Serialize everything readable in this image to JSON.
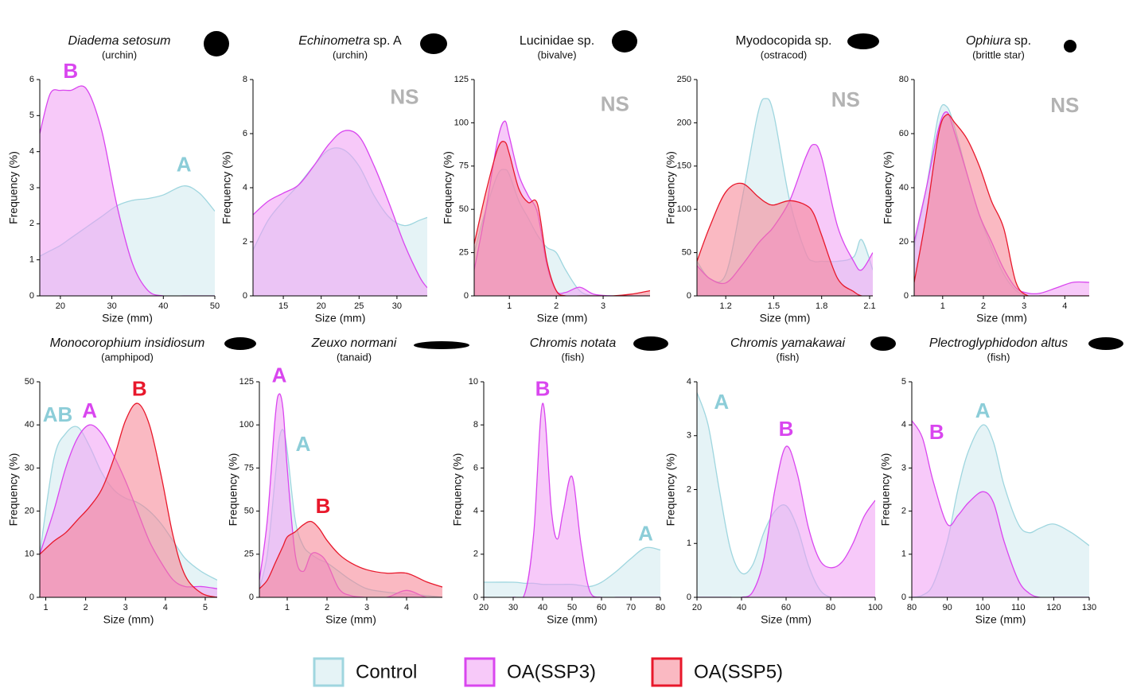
{
  "legend": [
    {
      "name": "Control",
      "color": "#9fd6df",
      "fill": "#cfe9ef"
    },
    {
      "name": "OA(SSP3)",
      "color": "#d946ef",
      "fill": "#f09cf4"
    },
    {
      "name": "OA(SSP5)",
      "color": "#e8182b",
      "fill": "#f57f8f"
    }
  ],
  "chart_data": [
    {
      "type": "area",
      "title": [
        {
          "text": "Diadema setosum",
          "italic": true
        }
      ],
      "subtitle": "(urchin)",
      "xlabel": "Size (mm)",
      "ylabel": "Frequency (%)",
      "x": [
        16,
        18,
        20,
        22,
        25,
        28,
        31,
        34,
        37,
        40,
        44,
        47,
        50
      ],
      "series": [
        {
          "name": "Control",
          "values": [
            1.1,
            1.25,
            1.4,
            1.6,
            1.9,
            2.2,
            2.5,
            2.65,
            2.7,
            2.8,
            3.05,
            2.85,
            2.35
          ]
        },
        {
          "name": "OA(SSP3)",
          "values": [
            4.5,
            5.6,
            5.7,
            5.7,
            5.75,
            4.6,
            2.5,
            0.9,
            0.15,
            0,
            0,
            0,
            0
          ]
        }
      ],
      "xlim": [
        16,
        50
      ],
      "xticks": [
        20,
        30,
        40,
        50
      ],
      "ylim": [
        0,
        6
      ],
      "yticks": [
        0,
        1,
        2,
        3,
        4,
        5,
        6
      ],
      "annotations": [
        {
          "text": "B",
          "x": 22,
          "y": 6.2,
          "color": "#d946ef"
        },
        {
          "text": "A",
          "x": 44,
          "y": 3.6,
          "color": "#8ccdd8"
        }
      ]
    },
    {
      "type": "area",
      "title": [
        {
          "text": "Echinometra",
          "italic": true
        },
        {
          "text": "sp. A",
          "italic": false
        }
      ],
      "subtitle": "(urchin)",
      "xlabel": "Size (mm)",
      "ylabel": "Frequency (%)",
      "x": [
        11,
        13,
        15,
        17,
        19,
        21,
        23,
        25,
        27,
        29,
        31,
        33,
        34
      ],
      "series": [
        {
          "name": "Control",
          "values": [
            1.7,
            2.8,
            3.5,
            4.1,
            4.8,
            5.4,
            5.4,
            4.8,
            3.7,
            2.9,
            2.6,
            2.8,
            2.9
          ]
        },
        {
          "name": "OA(SSP3)",
          "values": [
            3.0,
            3.5,
            3.8,
            4.1,
            4.8,
            5.6,
            6.1,
            5.9,
            4.8,
            3.4,
            1.9,
            0.7,
            0.3
          ]
        }
      ],
      "xlim": [
        11,
        34
      ],
      "xticks": [
        15,
        20,
        25,
        30
      ],
      "ylim": [
        0,
        8
      ],
      "yticks": [
        0,
        2,
        4,
        6,
        8
      ],
      "annotations": [
        {
          "text": "NS",
          "x": 31,
          "y": 7.3,
          "color": "#b3b3b3"
        }
      ]
    },
    {
      "type": "area",
      "title": [
        {
          "text": "Lucinidae sp.",
          "italic": false
        }
      ],
      "subtitle": "(bivalve)",
      "xlabel": "Size (mm)",
      "ylabel": "Frequency (%)",
      "x": [
        0.25,
        0.5,
        0.75,
        0.9,
        1.0,
        1.2,
        1.4,
        1.6,
        1.8,
        2.0,
        2.2,
        2.5,
        2.8,
        3.2,
        3.6,
        4.0
      ],
      "series": [
        {
          "name": "Control",
          "values": [
            25,
            50,
            70,
            73,
            70,
            55,
            45,
            35,
            28,
            25,
            15,
            3,
            0,
            0,
            0,
            0
          ]
        },
        {
          "name": "OA(SSP3)",
          "values": [
            15,
            50,
            90,
            101,
            92,
            70,
            58,
            48,
            18,
            3,
            2,
            5,
            1,
            0,
            0,
            0
          ]
        },
        {
          "name": "OA(SSP5)",
          "values": [
            30,
            60,
            85,
            89,
            82,
            62,
            54,
            53,
            20,
            3,
            0,
            0,
            0,
            0,
            1,
            3
          ]
        }
      ],
      "xlim": [
        0.25,
        4
      ],
      "xticks": [
        1,
        2,
        3
      ],
      "ylim": [
        0,
        125
      ],
      "yticks": [
        0,
        25,
        50,
        75,
        100,
        125
      ],
      "annotations": [
        {
          "text": "NS",
          "x": 3.25,
          "y": 110,
          "color": "#b3b3b3"
        }
      ]
    },
    {
      "type": "area",
      "title": [
        {
          "text": "Myodocopida sp.",
          "italic": false
        }
      ],
      "subtitle": "(ostracod)",
      "xlabel": "Size (mm)",
      "ylabel": "Frequency (%)",
      "x": [
        1.02,
        1.1,
        1.2,
        1.3,
        1.4,
        1.45,
        1.5,
        1.6,
        1.7,
        1.75,
        1.8,
        1.9,
        2.0,
        2.05,
        2.12
      ],
      "series": [
        {
          "name": "Control",
          "values": [
            40,
            20,
            25,
            110,
            210,
            228,
            210,
            110,
            50,
            40,
            40,
            40,
            45,
            65,
            30
          ]
        },
        {
          "name": "OA(SSP3)",
          "values": [
            35,
            20,
            15,
            35,
            60,
            70,
            80,
            110,
            160,
            175,
            160,
            80,
            40,
            30,
            50
          ]
        },
        {
          "name": "OA(SSP5)",
          "values": [
            40,
            80,
            120,
            130,
            115,
            108,
            105,
            110,
            105,
            95,
            70,
            20,
            5,
            0,
            0
          ]
        }
      ],
      "xlim": [
        1.02,
        2.12
      ],
      "xticks": [
        1.2,
        1.5,
        1.8,
        2.1
      ],
      "ylim": [
        0,
        250
      ],
      "yticks": [
        0,
        50,
        100,
        150,
        200,
        250
      ],
      "annotations": [
        {
          "text": "NS",
          "x": 1.95,
          "y": 225,
          "color": "#b3b3b3"
        }
      ]
    },
    {
      "type": "area",
      "title": [
        {
          "text": "Ophiura",
          "italic": true
        },
        {
          "text": "sp.",
          "italic": false
        }
      ],
      "subtitle": "(brittle star)",
      "xlabel": "Size (mm)",
      "ylabel": "Frequency (%)",
      "x": [
        0.3,
        0.6,
        0.9,
        1.1,
        1.3,
        1.6,
        1.9,
        2.2,
        2.5,
        2.8,
        3.1,
        3.4,
        3.8,
        4.2,
        4.6
      ],
      "series": [
        {
          "name": "Control",
          "values": [
            18,
            40,
            67,
            70,
            62,
            45,
            30,
            18,
            8,
            2,
            0,
            0,
            0,
            0,
            0
          ]
        },
        {
          "name": "OA(SSP3)",
          "values": [
            20,
            40,
            62,
            68,
            60,
            45,
            30,
            20,
            10,
            3,
            1,
            1,
            3,
            5,
            5
          ]
        },
        {
          "name": "OA(SSP5)",
          "values": [
            5,
            30,
            60,
            67,
            64,
            58,
            48,
            35,
            25,
            5,
            0,
            0,
            0,
            0,
            0
          ]
        }
      ],
      "xlim": [
        0.3,
        4.6
      ],
      "xticks": [
        1,
        2,
        3,
        4
      ],
      "ylim": [
        0,
        80
      ],
      "yticks": [
        0,
        20,
        40,
        60,
        80
      ],
      "annotations": [
        {
          "text": "NS",
          "x": 4,
          "y": 70,
          "color": "#b3b3b3"
        }
      ]
    },
    {
      "type": "area",
      "title": [
        {
          "text": "Monocorophium insidiosum",
          "italic": true
        }
      ],
      "subtitle": "(amphipod)",
      "xlabel": "Size (mm)",
      "ylabel": "Frequency (%)",
      "x": [
        0.85,
        1.2,
        1.5,
        1.8,
        2.1,
        2.4,
        2.7,
        3.0,
        3.3,
        3.6,
        3.9,
        4.2,
        4.5,
        4.9,
        5.3
      ],
      "series": [
        {
          "name": "Control",
          "values": [
            10,
            32,
            38,
            39.5,
            35,
            29,
            25,
            23,
            22,
            20,
            17,
            13,
            9,
            6,
            4
          ]
        },
        {
          "name": "OA(SSP3)",
          "values": [
            10,
            20,
            30,
            37,
            40,
            38,
            33,
            27,
            20,
            13,
            8,
            4,
            2.5,
            2.5,
            2
          ]
        },
        {
          "name": "OA(SSP5)",
          "values": [
            10,
            13,
            15,
            18,
            21,
            25,
            32,
            41,
            45,
            40,
            28,
            14,
            5,
            1,
            0
          ]
        }
      ],
      "xlim": [
        0.85,
        5.3
      ],
      "xticks": [
        1,
        2,
        3,
        4,
        5
      ],
      "ylim": [
        0,
        50
      ],
      "yticks": [
        0,
        10,
        20,
        30,
        40,
        50
      ],
      "annotations": [
        {
          "text": "AB",
          "x": 1.3,
          "y": 42,
          "color": "#8ccdd8"
        },
        {
          "text": "A",
          "x": 2.1,
          "y": 43,
          "color": "#d946ef"
        },
        {
          "text": "B",
          "x": 3.35,
          "y": 48,
          "color": "#e8182b"
        }
      ]
    },
    {
      "type": "area",
      "title": [
        {
          "text": "Zeuxo normani",
          "italic": true
        }
      ],
      "subtitle": "(tanaid)",
      "xlabel": "Size (mm)",
      "ylabel": "Frequency (%)",
      "x": [
        0.3,
        0.5,
        0.7,
        0.8,
        0.9,
        1.0,
        1.2,
        1.4,
        1.6,
        1.8,
        2.0,
        2.3,
        2.6,
        3.0,
        3.5,
        4.0,
        4.5,
        4.9
      ],
      "series": [
        {
          "name": "Control",
          "values": [
            5,
            25,
            70,
            92,
            97,
            85,
            45,
            30,
            25,
            22,
            20,
            15,
            10,
            5,
            3,
            2,
            1,
            0
          ]
        },
        {
          "name": "OA(SSP3)",
          "values": [
            10,
            45,
            105,
            118,
            108,
            75,
            25,
            15,
            25,
            25,
            20,
            5,
            1,
            0,
            0,
            4,
            0,
            0
          ]
        },
        {
          "name": "OA(SSP5)",
          "values": [
            5,
            10,
            20,
            25,
            30,
            35,
            38,
            42,
            44,
            40,
            33,
            25,
            20,
            16,
            14,
            14,
            9,
            6
          ]
        }
      ],
      "xlim": [
        0.3,
        4.9
      ],
      "xticks": [
        1,
        2,
        3,
        4
      ],
      "ylim": [
        0,
        125
      ],
      "yticks": [
        0,
        25,
        50,
        75,
        100,
        125
      ],
      "annotations": [
        {
          "text": "A",
          "x": 0.8,
          "y": 128,
          "color": "#d946ef"
        },
        {
          "text": "A",
          "x": 1.4,
          "y": 88,
          "color": "#8ccdd8"
        },
        {
          "text": "B",
          "x": 1.9,
          "y": 52,
          "color": "#e8182b"
        }
      ]
    },
    {
      "type": "area",
      "title": [
        {
          "text": "Chromis notata",
          "italic": true
        }
      ],
      "subtitle": "(fish)",
      "xlabel": "Size (mm)",
      "ylabel": "Frequency (%)",
      "x": [
        20,
        30,
        34,
        37,
        40,
        43,
        45,
        47,
        50,
        53,
        56,
        60,
        65,
        70,
        75,
        80
      ],
      "series": [
        {
          "name": "Control",
          "values": [
            0.7,
            0.7,
            0.65,
            0.65,
            0.6,
            0.6,
            0.6,
            0.6,
            0.6,
            0.55,
            0.5,
            0.7,
            1.2,
            1.8,
            2.3,
            2.2
          ]
        },
        {
          "name": "OA(SSP3)",
          "values": [
            0,
            0,
            0.2,
            3,
            9,
            4,
            2.7,
            4,
            5.6,
            2.5,
            0.3,
            0,
            0,
            0,
            0,
            0
          ]
        }
      ],
      "xlim": [
        20,
        80
      ],
      "xticks": [
        20,
        30,
        40,
        50,
        60,
        70,
        80
      ],
      "ylim": [
        0,
        10
      ],
      "yticks": [
        0,
        2,
        4,
        6,
        8,
        10
      ],
      "annotations": [
        {
          "text": "B",
          "x": 40,
          "y": 9.6,
          "color": "#d946ef"
        },
        {
          "text": "A",
          "x": 75,
          "y": 2.9,
          "color": "#8ccdd8"
        }
      ]
    },
    {
      "type": "area",
      "title": [
        {
          "text": "Chromis yamakawai",
          "italic": true
        }
      ],
      "subtitle": "(fish)",
      "xlabel": "Size (mm)",
      "ylabel": "Frequency (%)",
      "x": [
        20,
        25,
        30,
        35,
        40,
        45,
        50,
        55,
        60,
        65,
        70,
        75,
        80,
        85,
        90,
        95,
        100
      ],
      "series": [
        {
          "name": "Control",
          "values": [
            3.8,
            3.2,
            2.0,
            0.9,
            0.45,
            0.6,
            1.2,
            1.6,
            1.7,
            1.3,
            0.6,
            0.15,
            0,
            0,
            0,
            0,
            0
          ]
        },
        {
          "name": "OA(SSP3)",
          "values": [
            0,
            0,
            0,
            0,
            0,
            0.1,
            0.7,
            2.0,
            2.8,
            2.3,
            1.3,
            0.7,
            0.55,
            0.65,
            1.0,
            1.5,
            1.8
          ]
        }
      ],
      "xlim": [
        20,
        100
      ],
      "xticks": [
        20,
        40,
        60,
        80,
        100
      ],
      "ylim": [
        0,
        4
      ],
      "yticks": [
        0,
        1,
        2,
        3,
        4
      ],
      "annotations": [
        {
          "text": "A",
          "x": 31,
          "y": 3.6,
          "color": "#8ccdd8"
        },
        {
          "text": "B",
          "x": 60,
          "y": 3.1,
          "color": "#d946ef"
        }
      ]
    },
    {
      "type": "area",
      "title": [
        {
          "text": "Plectroglyphidodon altus",
          "italic": true
        }
      ],
      "subtitle": "(fish)",
      "xlabel": "Size (mm)",
      "ylabel": "Frequency (%)",
      "x": [
        80,
        83,
        86,
        90,
        93,
        96,
        100,
        103,
        106,
        110,
        113,
        116,
        120,
        125,
        130
      ],
      "series": [
        {
          "name": "Control",
          "values": [
            0,
            0.05,
            0.3,
            1.3,
            2.5,
            3.4,
            4.0,
            3.6,
            2.6,
            1.7,
            1.5,
            1.6,
            1.7,
            1.5,
            1.2
          ]
        },
        {
          "name": "OA(SSP3)",
          "values": [
            4.1,
            3.7,
            2.7,
            1.7,
            1.9,
            2.2,
            2.45,
            2.2,
            1.3,
            0.4,
            0.1,
            0,
            0,
            0,
            0
          ]
        }
      ],
      "xlim": [
        80,
        130
      ],
      "xticks": [
        80,
        90,
        100,
        110,
        120,
        130
      ],
      "ylim": [
        0,
        5
      ],
      "yticks": [
        0,
        1,
        2,
        3,
        4,
        5
      ],
      "annotations": [
        {
          "text": "B",
          "x": 87,
          "y": 3.8,
          "color": "#d946ef"
        },
        {
          "text": "A",
          "x": 100,
          "y": 4.3,
          "color": "#8ccdd8"
        }
      ]
    }
  ]
}
